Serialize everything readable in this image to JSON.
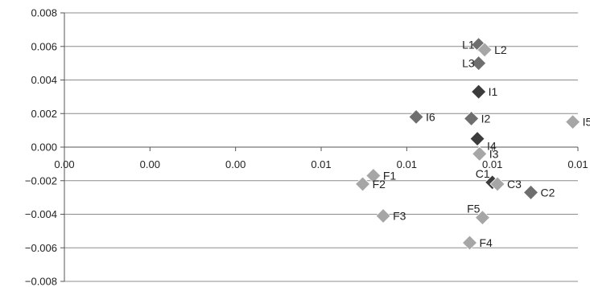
{
  "chart_data": {
    "type": "scatter",
    "title": "",
    "xlabel": "",
    "ylabel": "",
    "xlim": [
      0,
      0.012
    ],
    "ylim": [
      -0.008,
      0.008
    ],
    "x_tick_values": [
      0,
      0.002,
      0.004,
      0.006,
      0.008,
      0.01,
      0.012
    ],
    "x_tick_labels": [
      "0.00",
      "0.00",
      "0.00",
      "0.01",
      "0.01",
      "0.01",
      "0.01"
    ],
    "y_tick_values": [
      -0.008,
      -0.006,
      -0.004,
      -0.002,
      0,
      0.002,
      0.004,
      0.006,
      0.008
    ],
    "y_tick_labels": [
      "−0.008",
      "−0.006",
      "−0.004",
      "−0.002",
      "0.000",
      "0.002",
      "0.004",
      "0.006",
      "0.008"
    ],
    "grid": "horizontal",
    "legend": "none",
    "colors": {
      "dark": "#3c3c3c",
      "mid": "#6e6e6e",
      "light": "#a6a6a6",
      "grid": "#8c8c8c",
      "axis": "#555555"
    },
    "points": [
      {
        "label": "L1",
        "x": 0.00968,
        "y": 0.0061,
        "shade": "mid",
        "label_side": "left"
      },
      {
        "label": "L2",
        "x": 0.00982,
        "y": 0.0058,
        "shade": "light",
        "label_side": "right"
      },
      {
        "label": "L3",
        "x": 0.00968,
        "y": 0.005,
        "shade": "mid",
        "label_side": "left"
      },
      {
        "label": "I1",
        "x": 0.00968,
        "y": 0.0033,
        "shade": "dark",
        "label_side": "right"
      },
      {
        "label": "I6",
        "x": 0.00822,
        "y": 0.0018,
        "shade": "mid",
        "label_side": "right"
      },
      {
        "label": "I2",
        "x": 0.00951,
        "y": 0.0017,
        "shade": "mid",
        "label_side": "right"
      },
      {
        "label": "I5",
        "x": 0.01188,
        "y": 0.0015,
        "shade": "light",
        "label_side": "right"
      },
      {
        "label": "I4",
        "x": 0.00965,
        "y": 0.0005,
        "shade": "dark",
        "label_side": "right-below"
      },
      {
        "label": "I3",
        "x": 0.0097,
        "y": -0.0004,
        "shade": "light",
        "label_side": "right"
      },
      {
        "label": "F1",
        "x": 0.00722,
        "y": -0.0017,
        "shade": "light",
        "label_side": "right"
      },
      {
        "label": "F2",
        "x": 0.00697,
        "y": -0.0022,
        "shade": "light",
        "label_side": "right"
      },
      {
        "label": "C1",
        "x": 0.01,
        "y": -0.0021,
        "shade": "dark",
        "label_side": "left-above"
      },
      {
        "label": "C3",
        "x": 0.01012,
        "y": -0.0022,
        "shade": "light",
        "label_side": "right"
      },
      {
        "label": "C2",
        "x": 0.0109,
        "y": -0.0027,
        "shade": "mid",
        "label_side": "right"
      },
      {
        "label": "F3",
        "x": 0.00745,
        "y": -0.0041,
        "shade": "light",
        "label_side": "right"
      },
      {
        "label": "F5",
        "x": 0.00977,
        "y": -0.0042,
        "shade": "light",
        "label_side": "left-above"
      },
      {
        "label": "F4",
        "x": 0.00947,
        "y": -0.0057,
        "shade": "light",
        "label_side": "right"
      }
    ]
  }
}
